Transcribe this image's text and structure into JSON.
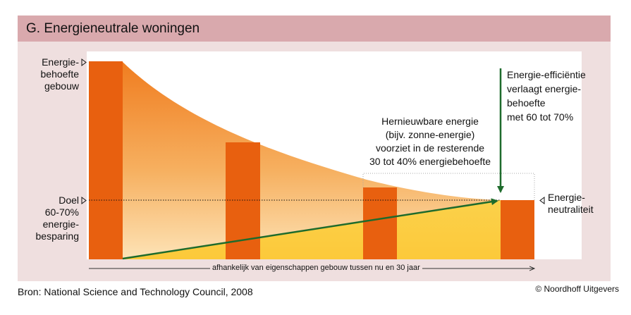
{
  "title": "G. Energieneutrale woningen",
  "labels": {
    "demand_building": [
      "Energie-",
      "behoefte",
      "gebouw"
    ],
    "goal": [
      "Doel",
      "60-70%",
      "energie-",
      "besparing"
    ],
    "efficiency": [
      "Energie-efficiëntie",
      "verlaagt energie-",
      "behoefte",
      "met 60 tot 70%"
    ],
    "renewable": [
      "Hernieuwbare energie",
      "(bijv. zonne-energie)",
      "voorziet in de resterende",
      "30 tot 40% energiebehoefte"
    ],
    "neutrality": [
      "Energie-",
      "neutraliteit"
    ]
  },
  "axis_label": "afhankelijk van eigenschappen gebouw tussen nu en 30 jaar",
  "source": "Bron: National Science and Technology Council, 2008",
  "copyright": "© Noordhoff Uitgevers",
  "bars": [
    {
      "name": "bar-start",
      "level": 1.0
    },
    {
      "name": "bar-second",
      "level": 0.6
    },
    {
      "name": "bar-third",
      "level": 0.35
    },
    {
      "name": "bar-end",
      "level": 0.3
    }
  ],
  "colors": {
    "header": "#d9a9ad",
    "frame": "#efdfdf",
    "bar": "#e8600f",
    "arrow": "#1e6b2c",
    "area_top": "#f28a2a",
    "area_bottom": "#fbd44a"
  }
}
